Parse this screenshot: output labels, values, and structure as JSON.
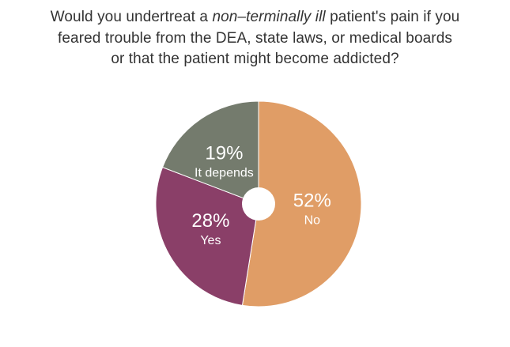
{
  "title": {
    "line1_before": "Would you undertreat a ",
    "line1_italic": "non–terminally ill",
    "line1_after": " patient's pain if you",
    "line2": "feared trouble from the DEA, state laws, or medical boards",
    "line3": "or that the patient might become addicted?"
  },
  "chart_data": {
    "type": "pie",
    "title": "Would you undertreat a non–terminally ill patient's pain if you feared trouble from the DEA, state laws, or medical boards or that the patient might become addicted?",
    "slices": [
      {
        "label": "No",
        "value": 52,
        "display": "52%",
        "color": "#E09D66"
      },
      {
        "label": "Yes",
        "value": 28,
        "display": "28%",
        "color": "#8A3F68"
      },
      {
        "label": "It depends",
        "value": 19,
        "display": "19%",
        "color": "#747B6D"
      }
    ],
    "donut_hole": true,
    "legend": "none"
  }
}
